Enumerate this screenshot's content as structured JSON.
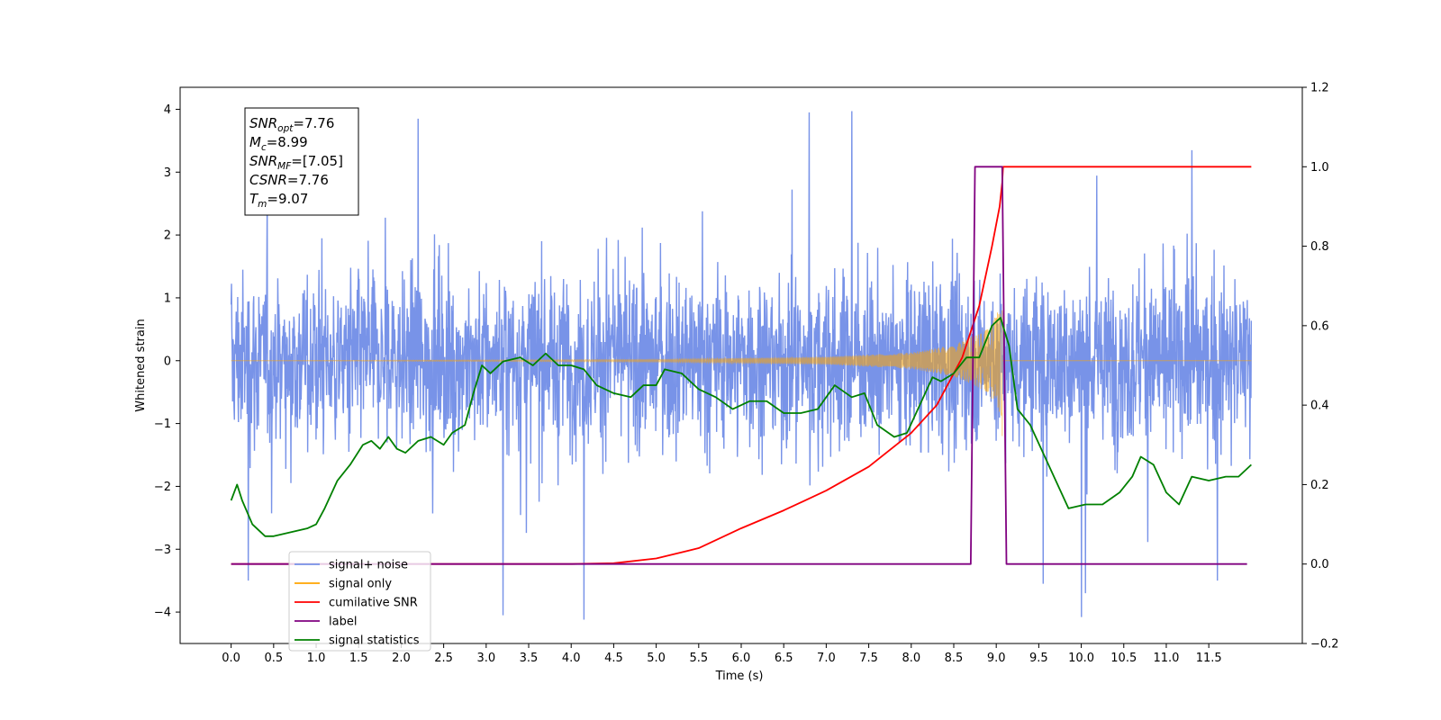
{
  "chart_data": {
    "type": "line",
    "title": "",
    "xlabel": "Time (s)",
    "ylabel_left": "Whitened strain",
    "ylabel_right": "",
    "xlim": [
      -0.6,
      12.6
    ],
    "ylim_left": [
      -4.5,
      4.35
    ],
    "ylim_right": [
      -0.2,
      1.2
    ],
    "x_ticks": [
      0.0,
      0.5,
      1.0,
      1.5,
      2.0,
      2.5,
      3.0,
      3.5,
      4.0,
      4.5,
      5.0,
      5.5,
      6.0,
      6.5,
      7.0,
      7.5,
      8.0,
      8.5,
      9.0,
      9.5,
      10.0,
      10.5,
      11.0,
      11.5
    ],
    "x_tick_labels": [
      "0.0",
      "0.5",
      "1.0",
      "1.5",
      "2.0",
      "2.5",
      "3.0",
      "3.5",
      "4.0",
      "4.5",
      "5.0",
      "5.5",
      "6.0",
      "6.5",
      "7.0",
      "7.5",
      "8.0",
      "8.5",
      "9.0",
      "9.5",
      "10.0",
      "10.5",
      "11.0",
      "11.5"
    ],
    "y_left_ticks": [
      -4,
      -3,
      -2,
      -1,
      0,
      1,
      2,
      3,
      4
    ],
    "y_left_tick_labels": [
      "−4",
      "−3",
      "−2",
      "−1",
      "0",
      "1",
      "2",
      "3",
      "4"
    ],
    "y_right_ticks": [
      -0.2,
      0.0,
      0.2,
      0.4,
      0.6,
      0.8,
      1.0,
      1.2
    ],
    "y_right_tick_labels": [
      "−0.2",
      "0.0",
      "0.2",
      "0.4",
      "0.6",
      "0.8",
      "1.0",
      "1.2"
    ],
    "grid": false,
    "legend_position": "lower-left",
    "noise": {
      "x_start": 0.0,
      "x_end": 12.0,
      "samples": 2800,
      "spikes": [
        {
          "x": 2.2,
          "y": 3.85
        },
        {
          "x": 6.8,
          "y": 3.95
        },
        {
          "x": 7.3,
          "y": 3.97
        },
        {
          "x": 11.3,
          "y": 3.35
        },
        {
          "x": 3.2,
          "y": -4.05
        },
        {
          "x": 4.15,
          "y": -4.12
        },
        {
          "x": 9.55,
          "y": -3.55
        },
        {
          "x": 10.0,
          "y": -4.08
        },
        {
          "x": 10.05,
          "y": -3.7
        },
        {
          "x": 0.2,
          "y": -3.5
        },
        {
          "x": 11.6,
          "y": -3.5
        }
      ]
    },
    "chirp": {
      "x_start": 0.0,
      "x_end": 9.07,
      "merger_time": 9.07,
      "envelope_points": [
        [
          0.0,
          0.0
        ],
        [
          5.0,
          0.02
        ],
        [
          7.0,
          0.06
        ],
        [
          8.0,
          0.13
        ],
        [
          8.5,
          0.25
        ],
        [
          8.9,
          0.5
        ],
        [
          9.07,
          0.9
        ]
      ],
      "final_min": -1.2,
      "final_max": 0.8
    },
    "series": [
      {
        "name": "signal+ noise",
        "axis": "left",
        "color": "#7893e8"
      },
      {
        "name": "signal only",
        "axis": "left",
        "color": "#ffa500"
      },
      {
        "name": "cumilative SNR",
        "axis": "right",
        "color": "#ff0000",
        "points": [
          [
            0.0,
            0.0
          ],
          [
            4.0,
            0.0
          ],
          [
            4.5,
            0.002
          ],
          [
            5.0,
            0.014
          ],
          [
            5.5,
            0.04
          ],
          [
            6.0,
            0.09
          ],
          [
            6.5,
            0.135
          ],
          [
            7.0,
            0.185
          ],
          [
            7.5,
            0.245
          ],
          [
            8.0,
            0.33
          ],
          [
            8.3,
            0.4
          ],
          [
            8.6,
            0.52
          ],
          [
            8.8,
            0.65
          ],
          [
            8.95,
            0.8
          ],
          [
            9.04,
            0.9
          ],
          [
            9.07,
            0.96
          ],
          [
            9.08,
            1.0
          ],
          [
            12.0,
            1.0
          ]
        ]
      },
      {
        "name": "label",
        "axis": "right",
        "color": "#800080",
        "points": [
          [
            0.0,
            0.0
          ],
          [
            8.7,
            0.0
          ],
          [
            8.75,
            1.0
          ],
          [
            9.07,
            1.0
          ],
          [
            9.12,
            0.0
          ],
          [
            11.95,
            0.0
          ]
        ]
      },
      {
        "name": "signal statistics",
        "axis": "right",
        "color": "#008000",
        "points": [
          [
            0.0,
            0.16
          ],
          [
            0.07,
            0.2
          ],
          [
            0.13,
            0.16
          ],
          [
            0.25,
            0.1
          ],
          [
            0.4,
            0.07
          ],
          [
            0.5,
            0.07
          ],
          [
            0.7,
            0.08
          ],
          [
            0.9,
            0.09
          ],
          [
            1.0,
            0.1
          ],
          [
            1.1,
            0.14
          ],
          [
            1.25,
            0.21
          ],
          [
            1.4,
            0.25
          ],
          [
            1.55,
            0.3
          ],
          [
            1.65,
            0.31
          ],
          [
            1.75,
            0.29
          ],
          [
            1.85,
            0.32
          ],
          [
            1.95,
            0.29
          ],
          [
            2.05,
            0.28
          ],
          [
            2.2,
            0.31
          ],
          [
            2.35,
            0.32
          ],
          [
            2.5,
            0.3
          ],
          [
            2.6,
            0.33
          ],
          [
            2.75,
            0.35
          ],
          [
            2.85,
            0.43
          ],
          [
            2.95,
            0.5
          ],
          [
            3.05,
            0.48
          ],
          [
            3.2,
            0.51
          ],
          [
            3.4,
            0.52
          ],
          [
            3.55,
            0.5
          ],
          [
            3.7,
            0.53
          ],
          [
            3.85,
            0.5
          ],
          [
            4.0,
            0.5
          ],
          [
            4.15,
            0.49
          ],
          [
            4.3,
            0.45
          ],
          [
            4.5,
            0.43
          ],
          [
            4.7,
            0.42
          ],
          [
            4.85,
            0.45
          ],
          [
            5.0,
            0.45
          ],
          [
            5.1,
            0.49
          ],
          [
            5.3,
            0.48
          ],
          [
            5.5,
            0.44
          ],
          [
            5.7,
            0.42
          ],
          [
            5.9,
            0.39
          ],
          [
            6.1,
            0.41
          ],
          [
            6.3,
            0.41
          ],
          [
            6.5,
            0.38
          ],
          [
            6.7,
            0.38
          ],
          [
            6.9,
            0.39
          ],
          [
            7.1,
            0.45
          ],
          [
            7.3,
            0.42
          ],
          [
            7.45,
            0.43
          ],
          [
            7.6,
            0.35
          ],
          [
            7.8,
            0.32
          ],
          [
            7.95,
            0.33
          ],
          [
            8.1,
            0.4
          ],
          [
            8.25,
            0.47
          ],
          [
            8.35,
            0.46
          ],
          [
            8.5,
            0.48
          ],
          [
            8.65,
            0.52
          ],
          [
            8.8,
            0.52
          ],
          [
            8.95,
            0.6
          ],
          [
            9.05,
            0.62
          ],
          [
            9.15,
            0.55
          ],
          [
            9.25,
            0.39
          ],
          [
            9.4,
            0.35
          ],
          [
            9.55,
            0.28
          ],
          [
            9.7,
            0.21
          ],
          [
            9.85,
            0.14
          ],
          [
            10.05,
            0.15
          ],
          [
            10.25,
            0.15
          ],
          [
            10.45,
            0.18
          ],
          [
            10.6,
            0.22
          ],
          [
            10.7,
            0.27
          ],
          [
            10.85,
            0.25
          ],
          [
            11.0,
            0.18
          ],
          [
            11.15,
            0.15
          ],
          [
            11.3,
            0.22
          ],
          [
            11.5,
            0.21
          ],
          [
            11.7,
            0.22
          ],
          [
            11.85,
            0.22
          ],
          [
            12.0,
            0.25
          ]
        ]
      }
    ],
    "annotation": {
      "lines": [
        {
          "main": "SNR",
          "sub": "opt",
          "value": "=7.76"
        },
        {
          "main": "M",
          "sub": "c",
          "value": "=8.99"
        },
        {
          "main": "SNR",
          "sub": "MF",
          "value": "=[7.05]"
        },
        {
          "main": "CSNR",
          "sub": "",
          "value": "=7.76"
        },
        {
          "main": "T",
          "sub": "m",
          "value": "=9.07"
        }
      ]
    },
    "legend": [
      {
        "label": "signal+ noise",
        "color": "#7893e8"
      },
      {
        "label": "signal only",
        "color": "#ffa500"
      },
      {
        "label": "cumilative SNR",
        "color": "#ff0000"
      },
      {
        "label": "label",
        "color": "#800080"
      },
      {
        "label": "signal statistics",
        "color": "#008000"
      }
    ]
  }
}
